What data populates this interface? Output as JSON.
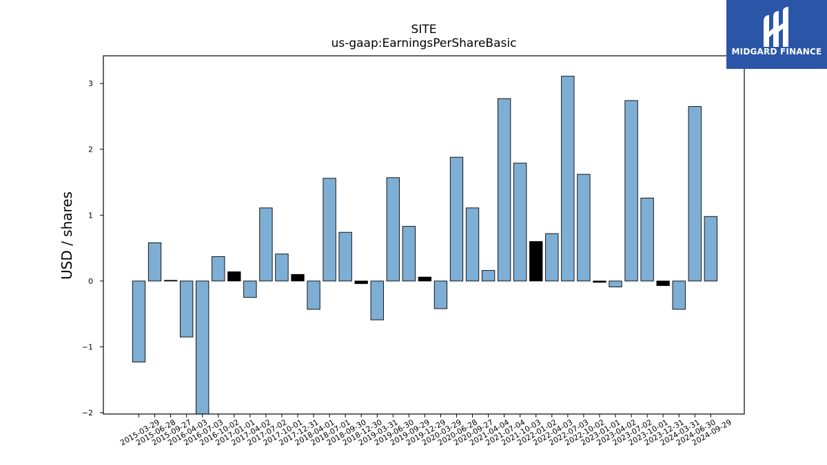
{
  "chart_data": {
    "type": "bar",
    "title": "SITE",
    "subtitle": "us-gaap:EarningsPerShareBasic",
    "xlabel": "",
    "ylabel": "USD / shares",
    "ylim": [
      -2.02,
      3.42
    ],
    "yticks": [
      -2,
      -1,
      0,
      1,
      2,
      3
    ],
    "ytick_labels": [
      "−2",
      "−1",
      "0",
      "1",
      "2",
      "3"
    ],
    "grid": false,
    "categories": [
      "2015-03-29",
      "2015-06-28",
      "2015-09-27",
      "2016-04-03",
      "2016-07-03",
      "2016-10-02",
      "2017-01-01",
      "2017-04-02",
      "2017-07-02",
      "2017-10-01",
      "2017-12-31",
      "2018-04-01",
      "2018-07-01",
      "2018-09-30",
      "2018-12-30",
      "2019-03-31",
      "2019-06-30",
      "2019-09-29",
      "2019-12-29",
      "2020-03-29",
      "2020-06-28",
      "2020-09-27",
      "2021-04-04",
      "2021-07-04",
      "2021-10-03",
      "2022-01-02",
      "2022-04-03",
      "2022-07-03",
      "2022-10-02",
      "2023-01-01",
      "2023-04-02",
      "2023-07-02",
      "2023-10-01",
      "2023-12-31",
      "2024-03-31",
      "2024-06-30",
      "2024-09-29"
    ],
    "values": [
      -1.23,
      0.58,
      0.01,
      -0.85,
      -2.03,
      0.37,
      0.14,
      -0.25,
      1.11,
      0.41,
      0.1,
      -0.43,
      1.56,
      0.74,
      -0.04,
      -0.59,
      1.57,
      0.83,
      0.06,
      -0.42,
      1.88,
      1.11,
      0.16,
      2.77,
      1.79,
      0.6,
      0.72,
      3.11,
      1.62,
      -0.02,
      -0.09,
      2.74,
      1.26,
      -0.07,
      -0.43,
      2.65,
      0.98
    ],
    "bar_colors": [
      "#7eaed3",
      "#7eaed3",
      "#000000",
      "#7eaed3",
      "#7eaed3",
      "#7eaed3",
      "#000000",
      "#7eaed3",
      "#7eaed3",
      "#7eaed3",
      "#000000",
      "#7eaed3",
      "#7eaed3",
      "#7eaed3",
      "#000000",
      "#7eaed3",
      "#7eaed3",
      "#7eaed3",
      "#000000",
      "#7eaed3",
      "#7eaed3",
      "#7eaed3",
      "#7eaed3",
      "#7eaed3",
      "#7eaed3",
      "#000000",
      "#7eaed3",
      "#7eaed3",
      "#7eaed3",
      "#000000",
      "#7eaed3",
      "#7eaed3",
      "#7eaed3",
      "#000000",
      "#7eaed3",
      "#7eaed3",
      "#7eaed3"
    ],
    "colors": {
      "bar": "#7eaed3",
      "highlight": "#000000",
      "edge": "#000000"
    }
  },
  "logo": {
    "text": "MIDGARD FINANCE",
    "background": "#2b56a8",
    "icon": "midgard-logo-icon"
  }
}
